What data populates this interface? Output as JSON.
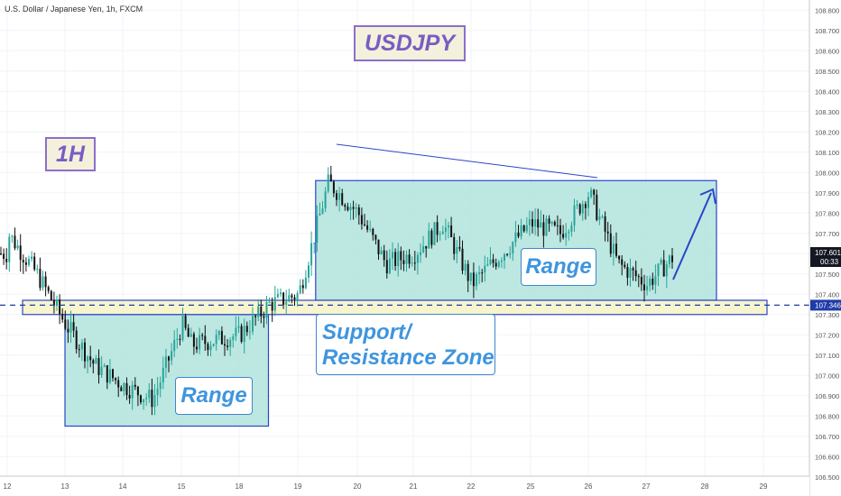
{
  "header": {
    "symbol_title": "U.S. Dollar / Japanese Yen, 1h, FXCM"
  },
  "annotations": {
    "symbol_label": "USDJPY",
    "timeframe_label": "1H",
    "range_left": "Range",
    "range_right": "Range",
    "sr_line1": "Support/",
    "sr_line2": "Resistance Zone"
  },
  "price_axis": {
    "ticks": [
      "108.800",
      "108.700",
      "108.600",
      "108.500",
      "108.400",
      "108.300",
      "108.200",
      "108.100",
      "108.000",
      "107.900",
      "107.800",
      "107.700",
      "107.600",
      "107.500",
      "107.400",
      "107.300",
      "107.200",
      "107.100",
      "107.000",
      "106.900",
      "106.800",
      "106.700",
      "106.600",
      "106.500"
    ],
    "current_price": "107.601",
    "countdown": "00:33",
    "line_price": "107.346"
  },
  "time_axis": {
    "ticks": [
      "12",
      "13",
      "14",
      "15",
      "18",
      "19",
      "20",
      "21",
      "22",
      "25",
      "26",
      "27",
      "28",
      "29"
    ]
  },
  "colors": {
    "up": "#26a69a",
    "down": "#111111",
    "zone_fill": "#b2e3dc",
    "zone_border": "#2b45c9",
    "sr_fill": "#f6f3c5",
    "dashed_line": "#1f3ba8",
    "arrow": "#2b45c9",
    "current_price_bg": "#131722",
    "line_price_bg": "#1f3ba8",
    "label_fill": "#f3f1dc",
    "label_border": "#8c6fc9"
  },
  "chart_data": {
    "type": "candlestick",
    "title": "U.S. Dollar / Japanese Yen, 1h, FXCM",
    "y_range": [
      106.45,
      108.85
    ],
    "close_series_estimate": {
      "x": [
        "12",
        "12.5",
        "13",
        "13.5",
        "14",
        "14.5",
        "15",
        "15.5",
        "18",
        "18.5",
        "19",
        "19.5",
        "20",
        "20.5",
        "21",
        "21.5",
        "22",
        "22.5",
        "25",
        "25.5",
        "26",
        "26.5",
        "27",
        "27.5"
      ],
      "y": [
        107.7,
        107.5,
        107.25,
        107.05,
        106.95,
        106.88,
        107.25,
        107.15,
        107.2,
        107.35,
        107.4,
        107.95,
        107.8,
        107.55,
        107.6,
        107.75,
        107.45,
        107.5,
        107.75,
        107.7,
        107.9,
        107.55,
        107.45,
        107.6
      ]
    },
    "range_zones": [
      {
        "label": "Range",
        "from": "13",
        "to": "18.5",
        "low": 106.75,
        "high": 107.3
      },
      {
        "label": "Range",
        "from": "19.3",
        "to": "28.2",
        "low": 107.37,
        "high": 107.96
      }
    ],
    "support_resistance_zone": {
      "label": "Support/ Resistance Zone",
      "low": 107.3,
      "high": 107.37
    },
    "horizontal_line": 107.346,
    "last_price": 107.601
  }
}
